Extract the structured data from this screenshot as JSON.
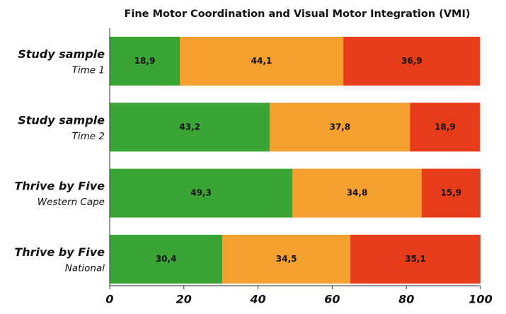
{
  "chart_data": {
    "type": "stacked-bar-horizontal",
    "title": "Fine Motor Coordination and Visual Motor Integration (VMI)",
    "categories": [
      "Study sample",
      "Study sample",
      "Thrive by Five",
      "Thrive by Five"
    ],
    "category_subtitles": [
      "Time 1",
      "Time 2",
      "Western Cape",
      "National"
    ],
    "series": [
      {
        "color": "#3aa535",
        "values": [
          18.9,
          43.2,
          49.3,
          30.4
        ],
        "value_labels": [
          "18,9",
          "43,2",
          "49,3",
          "30,4"
        ]
      },
      {
        "color": "#f4a030",
        "values": [
          44.1,
          37.8,
          34.8,
          34.5
        ],
        "value_labels": [
          "44,1",
          "37,8",
          "34,8",
          "34,5"
        ]
      },
      {
        "color": "#e63c19",
        "values": [
          36.9,
          18.9,
          15.9,
          35.1
        ],
        "value_labels": [
          "36,9",
          "18,9",
          "15,9",
          "35,1"
        ]
      }
    ],
    "xlim": [
      0,
      100
    ],
    "xticks": [
      0,
      20,
      40,
      60,
      80,
      100
    ]
  }
}
